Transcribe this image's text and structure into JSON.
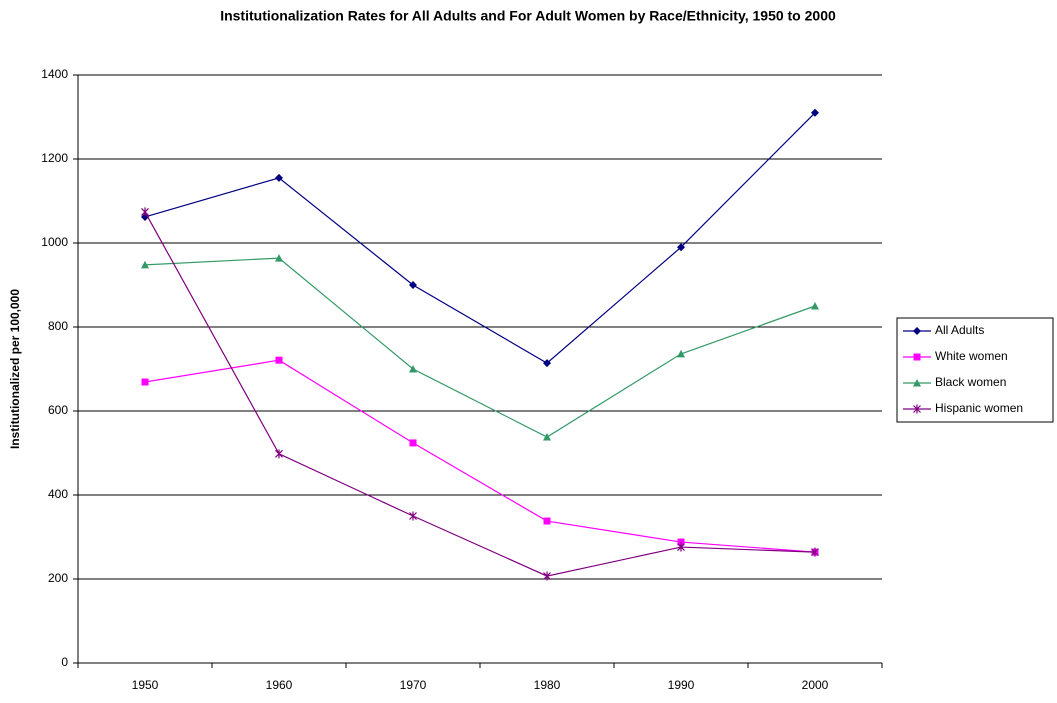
{
  "chart_data": {
    "type": "line",
    "title": "Institutionalization Rates for All Adults and For Adult Women by Race/Ethnicity, 1950 to 2000",
    "y_label": "Institutionalized per 100,000",
    "categories": [
      "1950",
      "1960",
      "1970",
      "1980",
      "1990",
      "2000"
    ],
    "series": [
      {
        "name": "All Adults",
        "color": "#000080",
        "marker": "diamond",
        "values": [
          1062,
          1155,
          900,
          714,
          990,
          1310
        ]
      },
      {
        "name": "White women",
        "color": "#ff00ff",
        "marker": "square",
        "values": [
          669,
          721,
          524,
          338,
          288,
          264
        ]
      },
      {
        "name": "Black women",
        "color": "#339966",
        "marker": "triangle",
        "values": [
          948,
          964,
          700,
          538,
          736,
          850
        ]
      },
      {
        "name": "Hispanic women",
        "color": "#800080",
        "marker": "star",
        "values": [
          1074,
          498,
          350,
          207,
          276,
          264
        ]
      }
    ],
    "ylim": [
      0,
      1400
    ],
    "yticks": [
      0,
      200,
      400,
      600,
      800,
      1000,
      1200,
      1400
    ],
    "grid": true,
    "legend": "right"
  }
}
